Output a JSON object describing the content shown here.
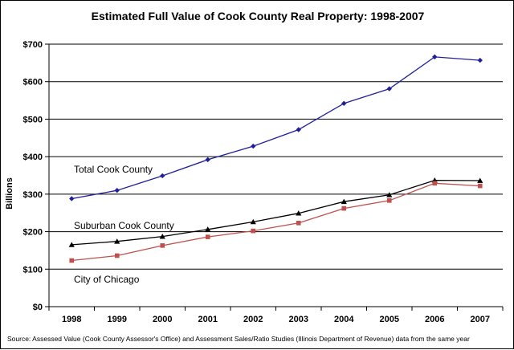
{
  "chart_data": {
    "type": "line",
    "title": "Estimated Full Value of Cook County Real Property: 1998-2007",
    "ylabel": "Billions",
    "xlabel": "",
    "categories": [
      "1998",
      "1999",
      "2000",
      "2001",
      "2002",
      "2003",
      "2004",
      "2005",
      "2006",
      "2007"
    ],
    "ylim": [
      0,
      700
    ],
    "yticks": [
      0,
      100,
      200,
      300,
      400,
      500,
      600,
      700
    ],
    "ytick_labels": [
      "$0",
      "$100",
      "$200",
      "$300",
      "$400",
      "$500",
      "$600",
      "$700"
    ],
    "grid": true,
    "legend": "none",
    "series": [
      {
        "name": "Total Cook County",
        "color": "#1f1f9a",
        "marker": "diamond",
        "values": [
          288,
          310,
          349,
          392,
          428,
          472,
          542,
          581,
          666,
          657
        ]
      },
      {
        "name": "Suburban Cook County",
        "color": "#000000",
        "marker": "triangle",
        "values": [
          165,
          174,
          187,
          206,
          226,
          249,
          280,
          298,
          337,
          336
        ]
      },
      {
        "name": "City of Chicago",
        "color": "#c0504d",
        "marker": "square",
        "values": [
          123,
          136,
          163,
          186,
          202,
          223,
          262,
          283,
          329,
          322
        ]
      }
    ],
    "annotations": [
      "Total Cook County",
      "Suburban Cook County",
      "City of Chicago"
    ],
    "source": "Source: Assessed Value (Cook County Assessor's Office) and Assessment Sales/Ratio Studies (Illinois Department of Revenue) data from the same year"
  }
}
